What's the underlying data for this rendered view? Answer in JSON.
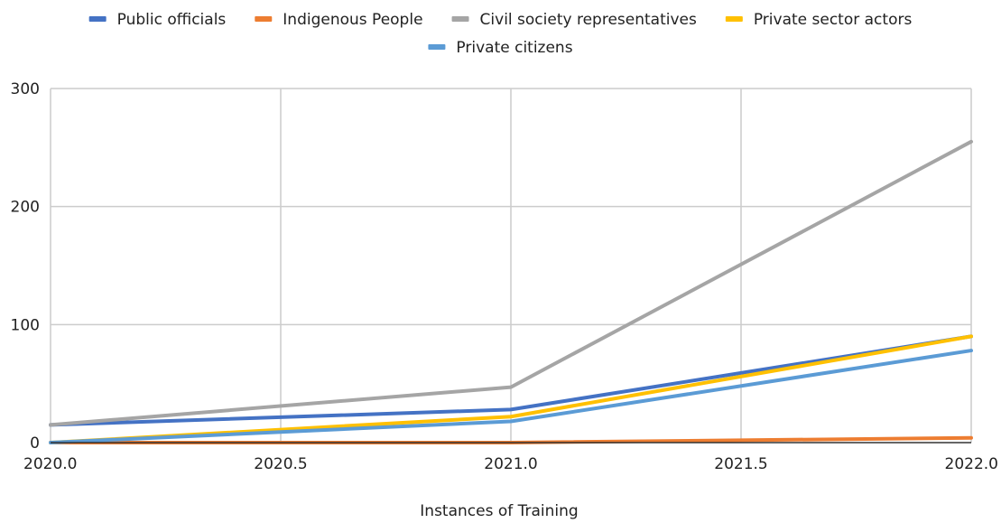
{
  "chart_data": {
    "type": "line",
    "title": "",
    "xlabel": "Instances of Training",
    "ylabel": "",
    "x": [
      2020,
      2021,
      2022
    ],
    "xlim": [
      2020,
      2022
    ],
    "ylim": [
      0,
      300
    ],
    "xticks": [
      "2020.0",
      "2020.5",
      "2021.0",
      "2021.5",
      "2022.0"
    ],
    "xtick_values": [
      2020,
      2020.5,
      2021,
      2021.5,
      2022
    ],
    "yticks": [
      "0",
      "100",
      "200",
      "300"
    ],
    "ytick_values": [
      0,
      100,
      200,
      300
    ],
    "grid": true,
    "legend_position": "top",
    "series": [
      {
        "name": "Public officials",
        "color": "#4472c4",
        "values": [
          15,
          28,
          90
        ]
      },
      {
        "name": "Indigenous People",
        "color": "#ed7d31",
        "values": [
          0,
          0,
          4
        ]
      },
      {
        "name": "Civil society representatives",
        "color": "#a5a5a5",
        "values": [
          15,
          47,
          255
        ]
      },
      {
        "name": "Private sector actors",
        "color": "#ffc000",
        "values": [
          0,
          22,
          90
        ]
      },
      {
        "name": "Private citizens",
        "color": "#5b9bd5",
        "values": [
          0,
          18,
          78
        ]
      }
    ]
  }
}
